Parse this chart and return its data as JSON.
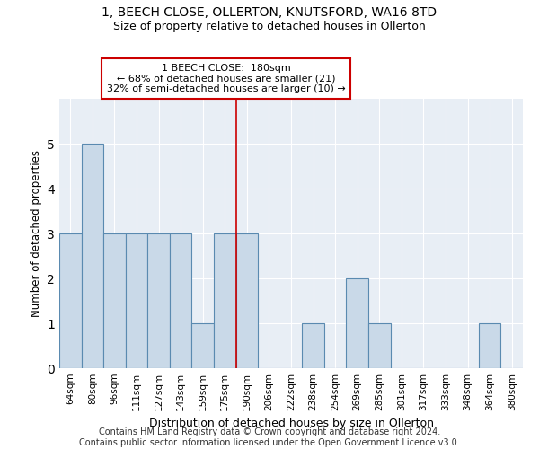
{
  "title1": "1, BEECH CLOSE, OLLERTON, KNUTSFORD, WA16 8TD",
  "title2": "Size of property relative to detached houses in Ollerton",
  "xlabel": "Distribution of detached houses by size in Ollerton",
  "ylabel": "Number of detached properties",
  "footer1": "Contains HM Land Registry data © Crown copyright and database right 2024.",
  "footer2": "Contains public sector information licensed under the Open Government Licence v3.0.",
  "categories": [
    "64sqm",
    "80sqm",
    "96sqm",
    "111sqm",
    "127sqm",
    "143sqm",
    "159sqm",
    "175sqm",
    "190sqm",
    "206sqm",
    "222sqm",
    "238sqm",
    "254sqm",
    "269sqm",
    "285sqm",
    "301sqm",
    "317sqm",
    "333sqm",
    "348sqm",
    "364sqm",
    "380sqm"
  ],
  "values": [
    3,
    5,
    3,
    3,
    3,
    3,
    1,
    3,
    3,
    0,
    0,
    1,
    0,
    2,
    1,
    0,
    0,
    0,
    0,
    1,
    0
  ],
  "bar_color": "#c9d9e8",
  "bar_edge_color": "#5a8ab0",
  "property_line_x": 7.5,
  "property_line_color": "#cc0000",
  "annotation_text": "1 BEECH CLOSE:  180sqm\n← 68% of detached houses are smaller (21)\n32% of semi-detached houses are larger (10) →",
  "annotation_box_color": "#ffffff",
  "annotation_box_edge_color": "#cc0000",
  "ylim": [
    0,
    6
  ],
  "yticks": [
    0,
    1,
    2,
    3,
    4,
    5
  ],
  "background_color": "#e8eef5",
  "grid_color": "#ffffff",
  "title1_fontsize": 10,
  "title2_fontsize": 9,
  "xlabel_fontsize": 9,
  "ylabel_fontsize": 8.5,
  "footer_fontsize": 7,
  "annotation_fontsize": 8
}
